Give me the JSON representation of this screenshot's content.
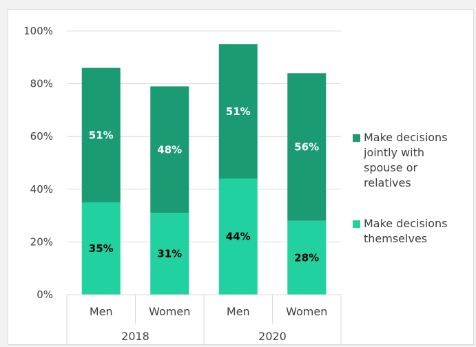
{
  "colors": {
    "background": "#f2f2f2",
    "panel": "#ffffff",
    "gridline": "#d9d9d9",
    "jointly": "#1b9b74",
    "themselves": "#22d1a0"
  },
  "chart_data": {
    "type": "bar",
    "stacked": true,
    "title": "",
    "xlabel": "",
    "ylabel": "",
    "ylim": [
      0,
      100
    ],
    "y_ticks": [
      "0%",
      "20%",
      "40%",
      "60%",
      "80%",
      "100%"
    ],
    "y_tick_values": [
      0,
      20,
      40,
      60,
      80,
      100
    ],
    "categories": [
      "Men",
      "Women",
      "Men",
      "Women"
    ],
    "groups": [
      {
        "label": "2018",
        "span": [
          0,
          1
        ]
      },
      {
        "label": "2020",
        "span": [
          2,
          3
        ]
      }
    ],
    "series": [
      {
        "name": "Make decisions themselves",
        "color": "#22d1a0",
        "values": [
          35,
          31,
          44,
          28
        ],
        "labels": [
          "35%",
          "31%",
          "44%",
          "28%"
        ]
      },
      {
        "name": "Make decisions jointly with spouse or relatives",
        "color": "#1b9b74",
        "values": [
          51,
          48,
          51,
          56
        ],
        "labels": [
          "51%",
          "48%",
          "51%",
          "56%"
        ]
      }
    ],
    "legend": {
      "position": "right",
      "items": [
        {
          "lines": [
            "Make decisions",
            "jointly with",
            "spouse or",
            "relatives"
          ],
          "color": "#1b9b74"
        },
        {
          "lines": [
            "Make decisions",
            "themselves"
          ],
          "color": "#22d1a0"
        }
      ]
    },
    "grid": true
  }
}
